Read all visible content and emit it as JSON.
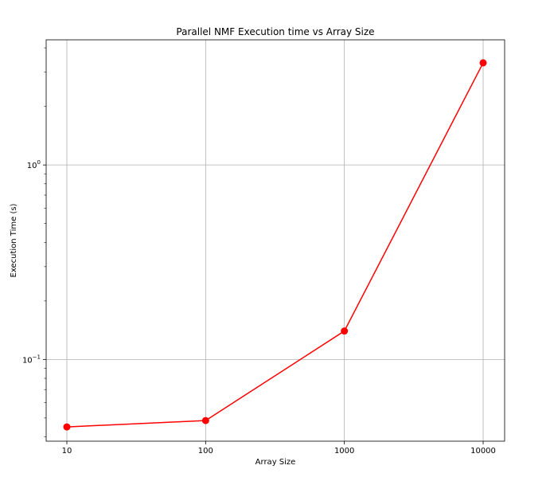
{
  "chart_data": {
    "type": "line",
    "title": "Parallel NMF Execution time vs Array Size",
    "xlabel": "Array Size",
    "ylabel": "Execution Time (s)",
    "x_scale": "categorical",
    "y_scale": "log",
    "categories": [
      "10",
      "100",
      "1000",
      "10000"
    ],
    "series": [
      {
        "values": [
          0.045,
          0.0485,
          0.14,
          3.35
        ]
      }
    ],
    "ylim": [
      0.038,
      4.4
    ],
    "y_major_ticks": [
      {
        "value": 0.1,
        "base": "10",
        "exp": "−1"
      },
      {
        "value": 1,
        "base": "10",
        "exp": "0"
      }
    ],
    "grid": true,
    "line_color": "#ff0000",
    "marker": "circle"
  }
}
